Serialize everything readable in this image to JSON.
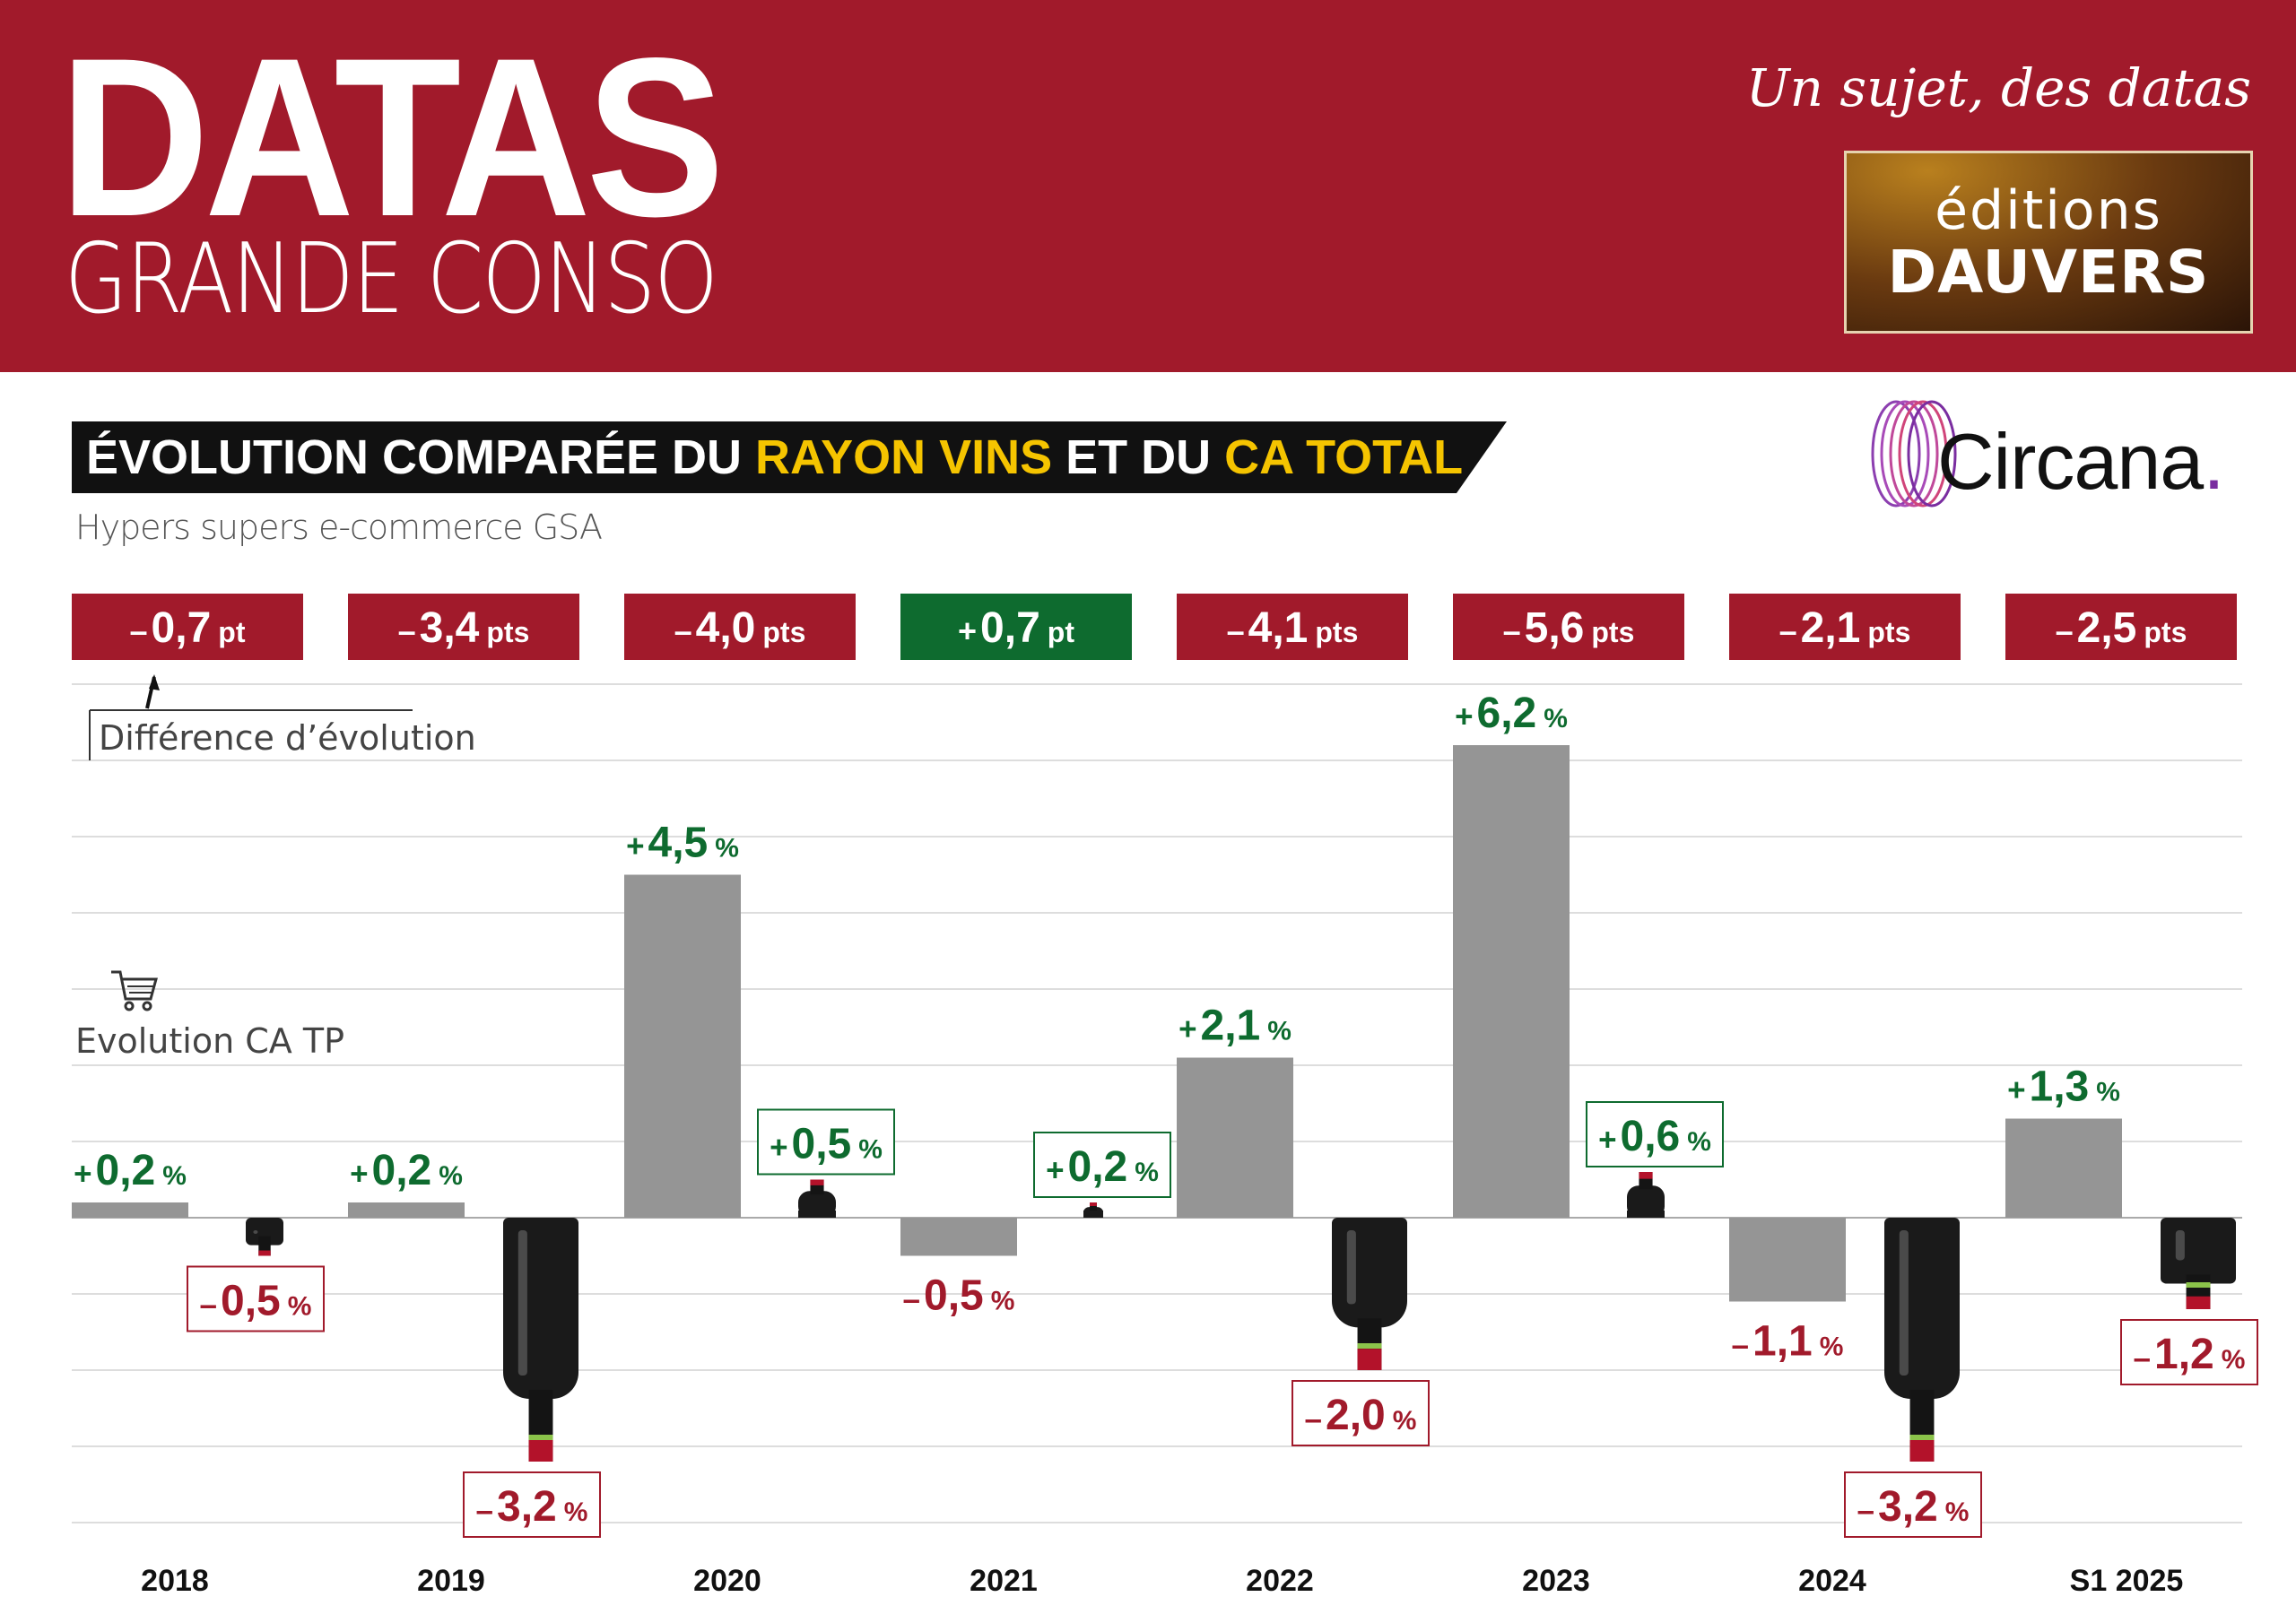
{
  "header": {
    "title": "DATAS",
    "subtitle": "GRANDE CONSO",
    "tagline": "Un sujet, des datas",
    "publisher_line1": "éditions",
    "publisher_line2": "DAUVERS",
    "background_color": "#a11a2b"
  },
  "chart_title": {
    "part1": "ÉVOLUTION COMPARÉE DU ",
    "part2": "RAYON VINS",
    "part3": " ET DU ",
    "part4": "CA TOTAL"
  },
  "subtitle": "Hypers supers e-commerce GSA",
  "source": {
    "name": "Circana",
    "dot": "."
  },
  "legend": {
    "difference_label": "Différence d’évolution",
    "ca_label": "Evolution CA TP",
    "cart_icon": "shopping-cart-icon",
    "bottle_icon": "wine-bottle-icon"
  },
  "chart_data": {
    "type": "bar",
    "categories": [
      "2018",
      "2019",
      "2020",
      "2021",
      "2022",
      "2023",
      "2024",
      "S1 2025"
    ],
    "series": [
      {
        "name": "Evolution CA TP",
        "values": [
          0.2,
          0.2,
          4.5,
          -0.5,
          2.1,
          6.2,
          -1.1,
          1.3
        ],
        "color": "#959595"
      },
      {
        "values": [
          -0.5,
          -3.2,
          0.5,
          0.2,
          -2.0,
          0.6,
          -3.2,
          -1.2
        ],
        "color": "#1a1a1a"
      }
    ],
    "labels_total": [
      {
        "sign": "+",
        "num": "0,2",
        "unit": "%"
      },
      {
        "sign": "+",
        "num": "0,2",
        "unit": "%"
      },
      {
        "sign": "+",
        "num": "4,5",
        "unit": "%"
      },
      {
        "sign": "–",
        "num": "0,5",
        "unit": "%"
      },
      {
        "sign": "+",
        "num": "2,1",
        "unit": "%"
      },
      {
        "sign": "+",
        "num": "6,2",
        "unit": "%"
      },
      {
        "sign": "–",
        "num": "1,1",
        "unit": "%"
      },
      {
        "sign": "+",
        "num": "1,3",
        "unit": "%"
      }
    ],
    "labels_wine": [
      {
        "sign": "–",
        "num": "0,5",
        "unit": "%"
      },
      {
        "sign": "–",
        "num": "3,2",
        "unit": "%"
      },
      {
        "sign": "+",
        "num": "0,5",
        "unit": "%"
      },
      {
        "sign": "+",
        "num": "0,2",
        "unit": "%"
      },
      {
        "sign": "–",
        "num": "2,0",
        "unit": "%"
      },
      {
        "sign": "+",
        "num": "0,6",
        "unit": "%"
      },
      {
        "sign": "–",
        "num": "3,2",
        "unit": "%"
      },
      {
        "sign": "–",
        "num": "1,2",
        "unit": "%"
      }
    ],
    "differences": [
      {
        "sign": "–",
        "num": "0,7",
        "unit": "pt",
        "value": -0.7
      },
      {
        "sign": "–",
        "num": "3,4",
        "unit": "pts",
        "value": -3.4
      },
      {
        "sign": "–",
        "num": "4,0",
        "unit": "pts",
        "value": -4.0
      },
      {
        "sign": "+",
        "num": "0,7",
        "unit": "pt",
        "value": 0.7
      },
      {
        "sign": "–",
        "num": "4,1",
        "unit": "pts",
        "value": -4.1
      },
      {
        "sign": "–",
        "num": "5,6",
        "unit": "pts",
        "value": -5.6
      },
      {
        "sign": "–",
        "num": "2,1",
        "unit": "pts",
        "value": -2.1
      },
      {
        "sign": "–",
        "num": "2,5",
        "unit": "pts",
        "value": -2.5
      }
    ],
    "ylim": [
      -4,
      7
    ],
    "grid": true,
    "colors": {
      "positive": "#0e6b2f",
      "negative": "#a11a2b",
      "total_bar": "#959595",
      "bottle": "#1a1a1a"
    }
  }
}
